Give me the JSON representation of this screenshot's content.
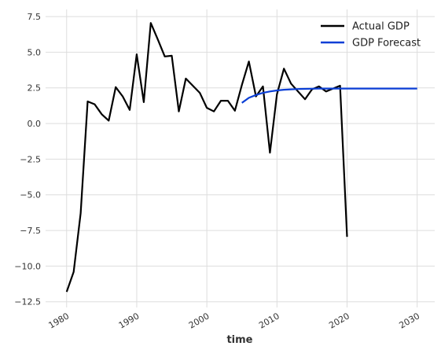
{
  "chart_data": {
    "type": "line",
    "xlabel": "time",
    "ylabel": "",
    "title": "",
    "xlim": [
      1977,
      2032.5
    ],
    "ylim": [
      -12.9,
      8.0
    ],
    "x_ticks": [
      1980,
      1990,
      2000,
      2010,
      2020,
      2030
    ],
    "x_tick_labels": [
      "1980",
      "1990",
      "2000",
      "2010",
      "2020",
      "2030"
    ],
    "y_ticks": [
      -12.5,
      -10.0,
      -7.5,
      -5.0,
      -2.5,
      0.0,
      2.5,
      5.0,
      7.5
    ],
    "y_tick_labels": [
      "−12.5",
      "−10.0",
      "−7.5",
      "−5.0",
      "−2.5",
      "0.0",
      "2.5",
      "5.0",
      "7.5"
    ],
    "grid": true,
    "legend_position": "top-right",
    "series": [
      {
        "name": "Actual GDP",
        "color": "#000000",
        "x": [
          1980,
          1981,
          1982,
          1983,
          1984,
          1985,
          1986,
          1987,
          1988,
          1989,
          1990,
          1991,
          1992,
          1993,
          1994,
          1995,
          1996,
          1997,
          1998,
          1999,
          2000,
          2001,
          2002,
          2003,
          2004,
          2005,
          2006,
          2007,
          2008,
          2009,
          2010,
          2011,
          2012,
          2013,
          2014,
          2015,
          2016,
          2017,
          2018,
          2019,
          2020
        ],
        "y": [
          -11.8,
          -10.4,
          -6.3,
          1.55,
          1.35,
          0.65,
          0.2,
          2.55,
          1.9,
          0.95,
          4.85,
          1.5,
          7.05,
          5.9,
          4.7,
          4.75,
          0.85,
          3.15,
          2.65,
          2.15,
          1.1,
          0.85,
          1.6,
          1.6,
          0.9,
          2.7,
          4.35,
          1.9,
          2.6,
          -2.05,
          2.05,
          3.85,
          2.8,
          2.25,
          1.7,
          2.4,
          2.6,
          2.25,
          2.45,
          2.65,
          -7.95
        ]
      },
      {
        "name": "GDP Forecast",
        "color": "#0b3fd6",
        "x": [
          2005,
          2006,
          2007,
          2008,
          2009,
          2010,
          2011,
          2012,
          2013,
          2014,
          2015,
          2016,
          2017,
          2018,
          2019,
          2020,
          2021,
          2022,
          2023,
          2024,
          2025,
          2026,
          2027,
          2028,
          2029,
          2030
        ],
        "y": [
          1.45,
          1.8,
          2.0,
          2.15,
          2.25,
          2.32,
          2.37,
          2.4,
          2.42,
          2.43,
          2.44,
          2.45,
          2.45,
          2.45,
          2.45,
          2.45,
          2.45,
          2.45,
          2.45,
          2.45,
          2.45,
          2.45,
          2.45,
          2.45,
          2.45,
          2.45
        ]
      }
    ]
  }
}
